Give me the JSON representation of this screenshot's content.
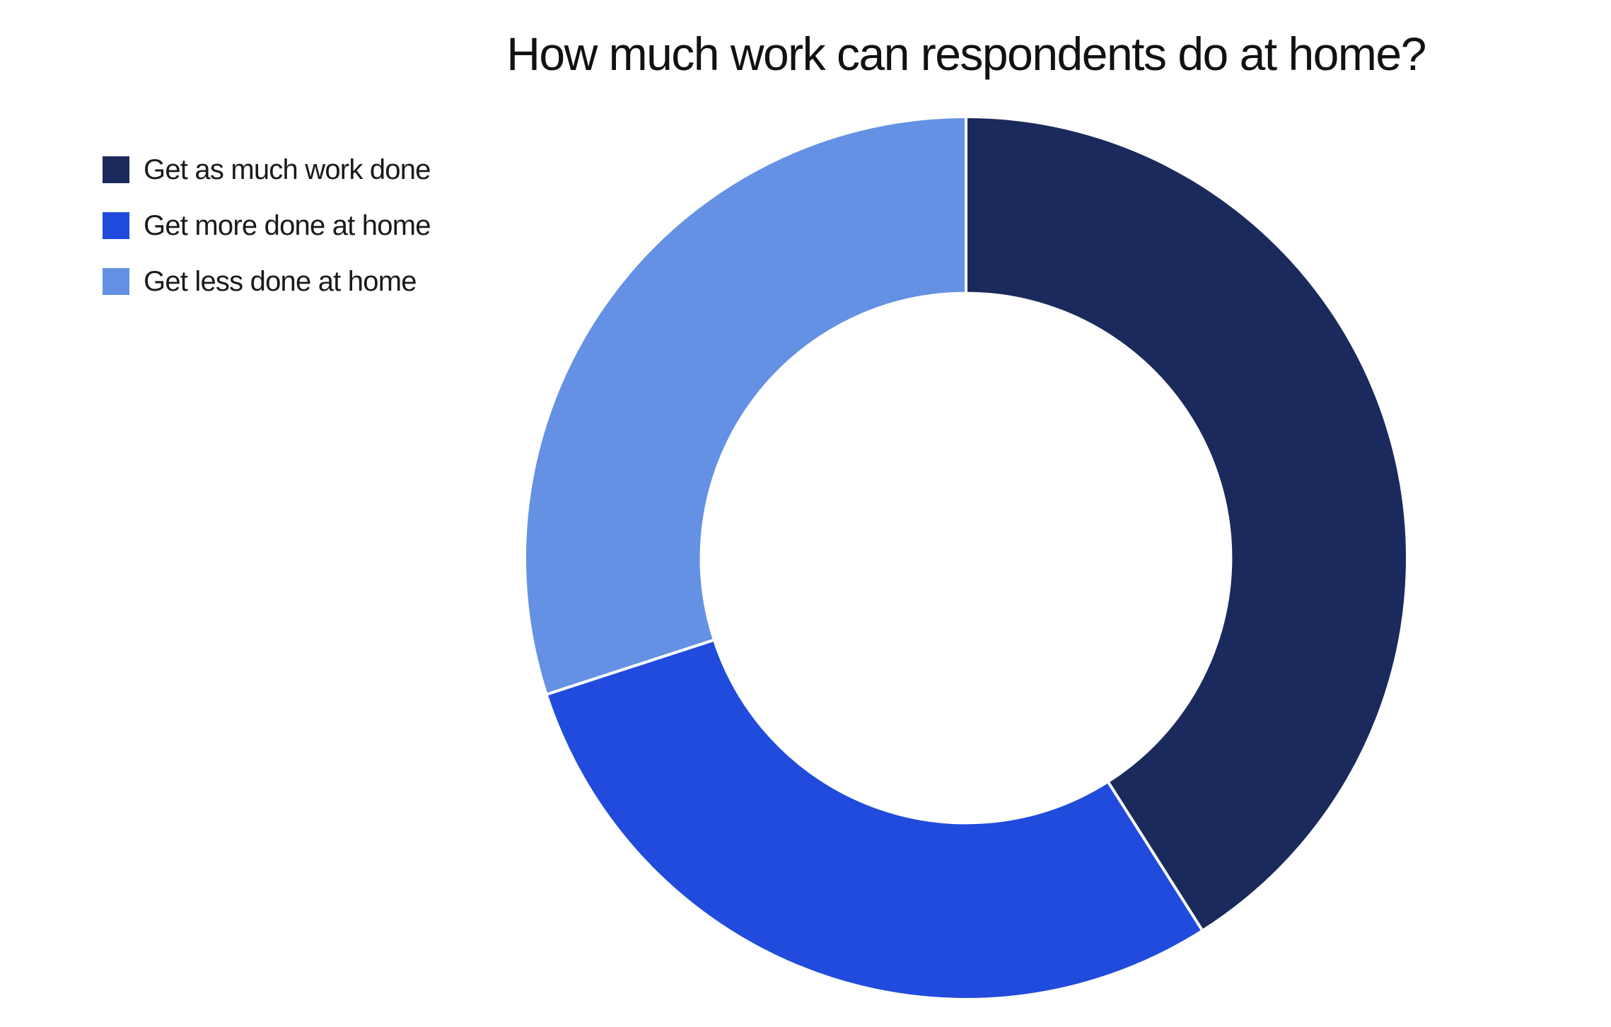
{
  "chart_data": {
    "type": "pie",
    "variant": "donut",
    "title": "How much work can respondents do at home?",
    "categories": [
      "Get as much work done",
      "Get more done at home",
      "Get less done at home"
    ],
    "values": [
      41,
      29,
      30
    ],
    "unit": "%",
    "colors": [
      "#1b2a5c",
      "#204bdc",
      "#6491e4"
    ],
    "start_angle_deg": 0,
    "direction": "clockwise",
    "inner_radius_ratio": 0.6,
    "legend_position": "top-left",
    "data_labels": false,
    "grid": false
  },
  "title": "How much work can respondents do at home?",
  "legend": {
    "items": [
      {
        "label": "Get as much work done",
        "color": "#1b2a5c"
      },
      {
        "label": "Get more done at home",
        "color": "#204bdc"
      },
      {
        "label": "Get less done at home",
        "color": "#6491e4"
      }
    ]
  },
  "colors": {
    "background": "#ffffff",
    "text": "#111111",
    "separator": "#ffffff"
  }
}
